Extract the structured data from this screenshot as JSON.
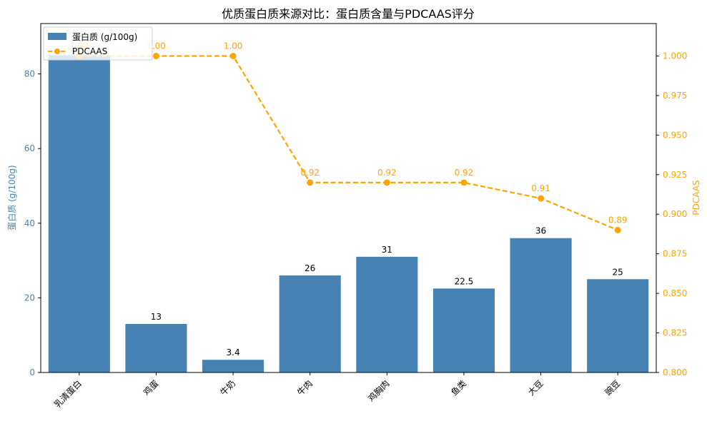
{
  "colors": {
    "bar": "#4682b4",
    "line": "#ffa500",
    "axis_left": "#4682b4",
    "axis_right": "#ffa500",
    "bar_label": "#000000"
  },
  "chart_data": {
    "type": "bar+line",
    "title": "优质蛋白质来源对比：蛋白质含量与PDCAAS评分",
    "categories": [
      "乳清蛋白",
      "鸡蛋",
      "牛奶",
      "牛肉",
      "鸡胸肉",
      "鱼类",
      "大豆",
      "豌豆"
    ],
    "series": [
      {
        "name": "蛋白质 (g/100g)",
        "type": "bar",
        "axis": "left",
        "values": [
          85,
          13,
          3.4,
          26,
          31,
          22.5,
          36,
          25
        ],
        "labels": [
          "",
          "13",
          "3.4",
          "26",
          "31",
          "22.5",
          "36",
          "25"
        ]
      },
      {
        "name": "PDCAAS",
        "type": "line",
        "axis": "right",
        "style": "dashed",
        "marker": "circle",
        "values": [
          1.0,
          1.0,
          1.0,
          0.92,
          0.92,
          0.92,
          0.91,
          0.89
        ],
        "labels": [
          "1.00",
          "1.00",
          "1.00",
          "0.92",
          "0.92",
          "0.92",
          "0.91",
          "0.89"
        ]
      }
    ],
    "y_left": {
      "label": "蛋白质 (g/100g)",
      "lim": [
        0,
        93.5
      ],
      "ticks": [
        0,
        20,
        40,
        60,
        80
      ]
    },
    "y_right": {
      "label": "PDCAAS",
      "lim": [
        0.8,
        1.0205
      ],
      "ticks": [
        "0.800",
        "0.825",
        "0.850",
        "0.875",
        "0.900",
        "0.925",
        "0.950",
        "0.975",
        "1.000"
      ]
    },
    "x_tick_rotation": -45,
    "legend": "top-left",
    "grid": false
  }
}
